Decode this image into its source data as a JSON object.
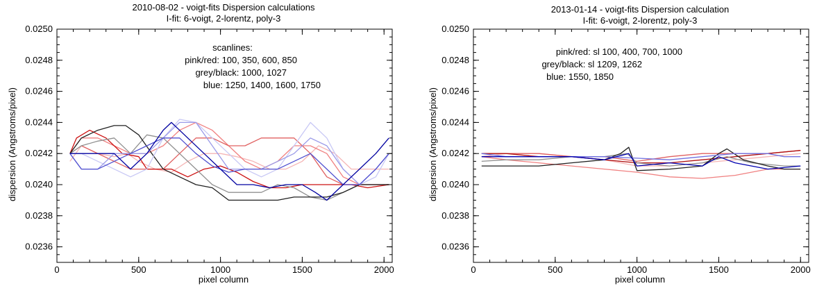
{
  "chart_data": [
    {
      "type": "line",
      "title": "2010-08-02  -  voigt-fits Dispersion calculations",
      "subtitle": "I-fit: 6-voigt, 2-lorentz, poly-3",
      "xlabel": "pixel column",
      "ylabel": "dispersion (Angstroms/pixel)",
      "xlim": [
        0,
        2050
      ],
      "ylim": [
        0.0235,
        0.025
      ],
      "xticks": [
        0,
        500,
        1000,
        1500,
        2000
      ],
      "yticks": [
        "0.0236",
        "0.0238",
        "0.0240",
        "0.0242",
        "0.0244",
        "0.0246",
        "0.0248",
        "0.0250"
      ],
      "annotations": [
        "scanlines:",
        "pink/red: 100, 350, 600, 850",
        "grey/black: 1000, 1027",
        "blue: 1250, 1400, 1600, 1750"
      ],
      "series": [
        {
          "name": "sl 100",
          "color": "#f5b5b5",
          "x": [
            80,
            150,
            250,
            350,
            430,
            500,
            600,
            700,
            800,
            900,
            1000,
            1100,
            1200,
            1300,
            1400,
            1500,
            1600,
            1700,
            1800,
            1900,
            2000,
            2030
          ],
          "y": [
            0.02415,
            0.02425,
            0.0242,
            0.02418,
            0.0242,
            0.02415,
            0.0241,
            0.02408,
            0.02415,
            0.0242,
            0.0242,
            0.02418,
            0.02415,
            0.0241,
            0.0241,
            0.02415,
            0.02425,
            0.0242,
            0.0241,
            0.0241,
            0.0241,
            0.0241
          ]
        },
        {
          "name": "sl 350",
          "color": "#f08080",
          "x": [
            80,
            150,
            250,
            350,
            450,
            550,
            650,
            750,
            850,
            950,
            1050,
            1150,
            1250,
            1350,
            1450,
            1550,
            1650,
            1750,
            1850,
            1950,
            2030
          ],
          "y": [
            0.0242,
            0.0243,
            0.0243,
            0.02425,
            0.0242,
            0.0242,
            0.02425,
            0.02435,
            0.0244,
            0.02435,
            0.02425,
            0.02415,
            0.0241,
            0.02415,
            0.02425,
            0.02425,
            0.0242,
            0.02405,
            0.024,
            0.024,
            0.024
          ]
        },
        {
          "name": "sl 600",
          "color": "#e06060",
          "x": [
            80,
            150,
            250,
            350,
            450,
            550,
            650,
            750,
            850,
            950,
            1050,
            1150,
            1250,
            1350,
            1450,
            1550,
            1650,
            1750,
            1850,
            1950,
            2030
          ],
          "y": [
            0.0242,
            0.02425,
            0.0242,
            0.02415,
            0.0241,
            0.0241,
            0.0241,
            0.0242,
            0.0243,
            0.0243,
            0.02425,
            0.02425,
            0.0243,
            0.0243,
            0.0243,
            0.0242,
            0.02405,
            0.024,
            0.024,
            0.024,
            0.024
          ]
        },
        {
          "name": "sl 850",
          "color": "#cc1010",
          "x": [
            80,
            120,
            200,
            300,
            400,
            500,
            550,
            620,
            700,
            800,
            900,
            1000,
            1100,
            1200,
            1300,
            1400,
            1500,
            1600,
            1700,
            1800,
            1900,
            2030
          ],
          "y": [
            0.0242,
            0.0243,
            0.02435,
            0.0243,
            0.0242,
            0.02418,
            0.0241,
            0.0241,
            0.0241,
            0.02405,
            0.0241,
            0.02412,
            0.02408,
            0.02402,
            0.02398,
            0.02398,
            0.024,
            0.024,
            0.024,
            0.024,
            0.02398,
            0.024
          ]
        },
        {
          "name": "sl 1000",
          "color": "#909090",
          "x": [
            80,
            150,
            250,
            350,
            450,
            550,
            650,
            750,
            850,
            950,
            1050,
            1150,
            1250,
            1350,
            1450,
            1550,
            1650,
            1750,
            1850,
            1950,
            2030
          ],
          "y": [
            0.0242,
            0.02425,
            0.02428,
            0.0243,
            0.0242,
            0.02432,
            0.0243,
            0.0242,
            0.0241,
            0.024,
            0.02395,
            0.02395,
            0.02395,
            0.024,
            0.02398,
            0.02392,
            0.0239,
            0.02395,
            0.024,
            0.024,
            0.024
          ]
        },
        {
          "name": "sl 1027",
          "color": "#202020",
          "x": [
            80,
            150,
            250,
            350,
            420,
            500,
            580,
            650,
            750,
            850,
            950,
            1050,
            1150,
            1250,
            1350,
            1450,
            1550,
            1650,
            1750,
            1850,
            1950,
            2030
          ],
          "y": [
            0.0242,
            0.0243,
            0.02435,
            0.02438,
            0.02438,
            0.02432,
            0.0242,
            0.0241,
            0.02405,
            0.024,
            0.02398,
            0.0239,
            0.0239,
            0.0239,
            0.0239,
            0.02392,
            0.02392,
            0.02392,
            0.02395,
            0.024,
            0.024,
            0.024
          ]
        },
        {
          "name": "sl 1250",
          "color": "#c8c8f5",
          "x": [
            80,
            150,
            250,
            350,
            450,
            550,
            650,
            750,
            850,
            950,
            1050,
            1150,
            1250,
            1350,
            1450,
            1550,
            1650,
            1750,
            1850,
            1950,
            2030
          ],
          "y": [
            0.0242,
            0.0242,
            0.02415,
            0.0241,
            0.02405,
            0.0241,
            0.0243,
            0.02442,
            0.0244,
            0.0243,
            0.0242,
            0.0241,
            0.02405,
            0.0241,
            0.02425,
            0.0244,
            0.0243,
            0.0241,
            0.024,
            0.02405,
            0.0242
          ]
        },
        {
          "name": "sl 1400",
          "color": "#9a9ae8",
          "x": [
            80,
            150,
            250,
            350,
            450,
            550,
            650,
            750,
            850,
            950,
            1050,
            1150,
            1250,
            1350,
            1450,
            1550,
            1650,
            1750,
            1850,
            1950,
            2030
          ],
          "y": [
            0.0242,
            0.0241,
            0.0241,
            0.0242,
            0.0242,
            0.0242,
            0.0243,
            0.0244,
            0.0244,
            0.02425,
            0.0241,
            0.0241,
            0.0241,
            0.02415,
            0.0242,
            0.0243,
            0.02425,
            0.0241,
            0.024,
            0.0241,
            0.0242
          ]
        },
        {
          "name": "sl 1600",
          "color": "#5050d0",
          "x": [
            80,
            150,
            250,
            350,
            450,
            550,
            650,
            750,
            850,
            950,
            1050,
            1150,
            1250,
            1350,
            1450,
            1550,
            1650,
            1750,
            1850,
            1950,
            2030
          ],
          "y": [
            0.0242,
            0.0241,
            0.0241,
            0.02415,
            0.0242,
            0.02425,
            0.0243,
            0.0243,
            0.0242,
            0.02412,
            0.02408,
            0.0241,
            0.0241,
            0.0241,
            0.02415,
            0.0242,
            0.0241,
            0.024,
            0.024,
            0.0241,
            0.0242
          ]
        },
        {
          "name": "sl 1750",
          "color": "#0000a0",
          "x": [
            80,
            150,
            250,
            350,
            450,
            550,
            650,
            700,
            800,
            900,
            1000,
            1100,
            1200,
            1300,
            1400,
            1500,
            1580,
            1650,
            1750,
            1850,
            1950,
            2030
          ],
          "y": [
            0.0242,
            0.0242,
            0.0242,
            0.0242,
            0.0241,
            0.0242,
            0.02435,
            0.0244,
            0.0243,
            0.0242,
            0.0241,
            0.024,
            0.024,
            0.02398,
            0.024,
            0.024,
            0.02395,
            0.0239,
            0.024,
            0.0241,
            0.0242,
            0.0243
          ]
        }
      ]
    },
    {
      "type": "line",
      "title": "2013-01-14  -  voigt-fits Dispersion calculation",
      "subtitle": "I-fit: 6-voigt, 2-lorentz, poly-3",
      "xlabel": "pixel column",
      "ylabel": "dispersion (Angstroms/pixel)",
      "xlim": [
        0,
        2050
      ],
      "ylim": [
        0.0235,
        0.025
      ],
      "xticks": [
        0,
        500,
        1000,
        1500,
        2000
      ],
      "yticks": [
        "0.0236",
        "0.0238",
        "0.0240",
        "0.0242",
        "0.0244",
        "0.0246",
        "0.0248",
        "0.0250"
      ],
      "annotations": [
        "pink/red: sl 100, 400, 700, 1000",
        "grey/black: sl 1209, 1262",
        "blue: 1550, 1850"
      ],
      "series": [
        {
          "name": "sl 100",
          "color": "#f5b5b5",
          "x": [
            50,
            200,
            400,
            600,
            800,
            1000,
            1200,
            1400,
            1600,
            1800,
            2000
          ],
          "y": [
            0.02418,
            0.0242,
            0.0242,
            0.02418,
            0.02416,
            0.02412,
            0.02412,
            0.02414,
            0.02416,
            0.02418,
            0.0242
          ]
        },
        {
          "name": "sl 400",
          "color": "#f08080",
          "x": [
            50,
            200,
            400,
            600,
            800,
            1000,
            1200,
            1400,
            1600,
            1800,
            2000
          ],
          "y": [
            0.02418,
            0.02416,
            0.02414,
            0.02412,
            0.0241,
            0.02408,
            0.02405,
            0.02404,
            0.02406,
            0.0241,
            0.0241
          ]
        },
        {
          "name": "sl 700",
          "color": "#e06060",
          "x": [
            50,
            200,
            400,
            600,
            800,
            1000,
            1200,
            1400,
            1600,
            1800,
            2000
          ],
          "y": [
            0.0242,
            0.0242,
            0.0242,
            0.02418,
            0.02418,
            0.02415,
            0.02418,
            0.0242,
            0.0242,
            0.0242,
            0.02422
          ]
        },
        {
          "name": "sl 1000",
          "color": "#b01010",
          "x": [
            50,
            200,
            400,
            600,
            800,
            1000,
            1200,
            1400,
            1600,
            1800,
            2000
          ],
          "y": [
            0.0242,
            0.0242,
            0.02418,
            0.02418,
            0.02416,
            0.02414,
            0.02414,
            0.02416,
            0.02418,
            0.0242,
            0.02422
          ]
        },
        {
          "name": "sl 1209",
          "color": "#909090",
          "x": [
            50,
            200,
            400,
            600,
            800,
            940,
            1000,
            1200,
            1400,
            1550,
            1700,
            1900,
            2000
          ],
          "y": [
            0.02415,
            0.02416,
            0.02416,
            0.02418,
            0.02418,
            0.0242,
            0.02414,
            0.02412,
            0.02414,
            0.02418,
            0.02414,
            0.02412,
            0.02412
          ]
        },
        {
          "name": "sl 1262",
          "color": "#202020",
          "x": [
            50,
            200,
            400,
            600,
            800,
            900,
            950,
            1000,
            1200,
            1400,
            1500,
            1550,
            1650,
            1800,
            1900,
            2000
          ],
          "y": [
            0.02412,
            0.02412,
            0.02412,
            0.02414,
            0.02416,
            0.0242,
            0.02424,
            0.02409,
            0.0241,
            0.02412,
            0.0242,
            0.02423,
            0.02416,
            0.02412,
            0.0241,
            0.0241
          ]
        },
        {
          "name": "sl 1550",
          "color": "#7070e0",
          "x": [
            50,
            200,
            400,
            600,
            800,
            1000,
            1200,
            1400,
            1600,
            1800,
            1900,
            2000
          ],
          "y": [
            0.0242,
            0.02418,
            0.02418,
            0.02418,
            0.02418,
            0.02417,
            0.02416,
            0.02418,
            0.0242,
            0.0242,
            0.02418,
            0.02418
          ]
        },
        {
          "name": "sl 1850",
          "color": "#0000b0",
          "x": [
            50,
            200,
            400,
            600,
            800,
            950,
            1000,
            1200,
            1400,
            1500,
            1600,
            1800,
            2000
          ],
          "y": [
            0.02418,
            0.02418,
            0.02418,
            0.02418,
            0.02416,
            0.0242,
            0.02412,
            0.02414,
            0.02412,
            0.02418,
            0.02414,
            0.0241,
            0.02412
          ]
        }
      ]
    }
  ]
}
